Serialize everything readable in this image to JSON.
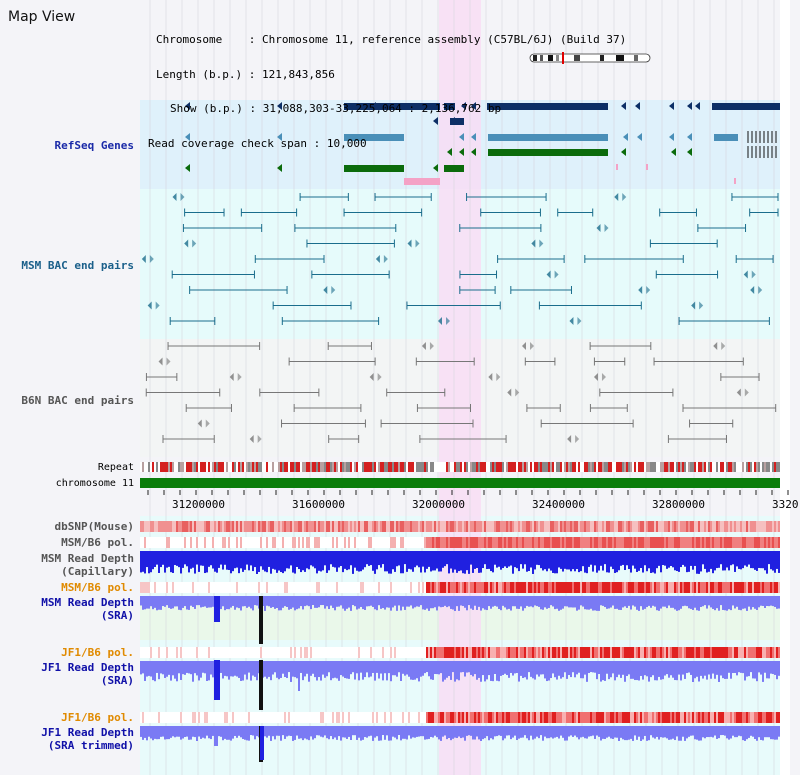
{
  "page": {
    "title": "Map View"
  },
  "header": {
    "chromosome_key": "Chromosome",
    "chromosome_value": "Chromosome 11, reference assembly (C57BL/6J) (Build 37)",
    "length_key": "Length (b.p.)",
    "length_value": "121,843,856",
    "show_key": "Show (b.p.)",
    "show_value": "31,088,303-33,225,064 : 2,136,762 bp",
    "coverage_key": "Read coverage check span",
    "coverage_value": "10,000"
  },
  "tracks": {
    "refseq": "RefSeq Genes",
    "msm_bac": "MSM BAC end pairs",
    "b6n_bac": "B6N BAC end pairs",
    "repeat": "Repeat",
    "chromosome": "chromosome 11",
    "dbsnp": "dbSNP(Mouse)",
    "msm_b6_pol": "MSM/B6 pol.",
    "msm_depth_cap_1": "MSM Read Depth",
    "msm_depth_cap_2": "(Capillary)",
    "msm_b6_pol_2": "MSM/B6 pol.",
    "msm_depth_sra_1": "MSM Read Depth",
    "msm_depth_sra_2": "(SRA)",
    "jf1_b6_pol": "JF1/B6 pol.",
    "jf1_depth_sra_1": "JF1 Read Depth",
    "jf1_depth_sra_2": "(SRA)",
    "jf1_b6_pol_2": "JF1/B6 pol.",
    "jf1_depth_trim_1": "JF1 Read Depth",
    "jf1_depth_trim_2": "(SRA trimmed)"
  },
  "axis": {
    "ticks": [
      "31200000",
      "31600000",
      "32000000",
      "32400000",
      "32800000",
      "3320"
    ]
  },
  "colors": {
    "refseq_bg": "#dff1fb",
    "msm_bac_bg": "#e6fbfb",
    "b6n_bac_bg": "#f3f5f5",
    "lower_bg": "#e8fbfb",
    "highlight": "#f8ddf4",
    "gene_dark": "#0d2f66",
    "gene_mid": "#4a8fb8",
    "gene_green": "#0b6b0b",
    "gene_pink": "#f4a2c6",
    "msm_pair": "#1a6d8c",
    "b6n_pair": "#777777",
    "chromosome_bar": "#0b7d0b",
    "depth_blue": "#2020e0",
    "depth_light": "#7a7af4",
    "label_refseq": "#1a2aa8",
    "label_msm": "#1a5f8a",
    "label_b6n": "#555555",
    "label_orange": "#e08a00",
    "label_blue": "#1010a8"
  }
}
